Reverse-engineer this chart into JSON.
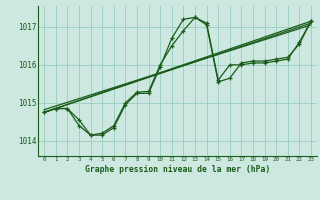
{
  "title": "Graphe pression niveau de la mer (hPa)",
  "background_color": "#cce8e0",
  "grid_color": "#99ccc2",
  "line_color": "#1a5c1a",
  "xlim": [
    -0.5,
    23.5
  ],
  "ylim": [
    1013.6,
    1017.55
  ],
  "yticks": [
    1014,
    1015,
    1016,
    1017
  ],
  "xticks": [
    0,
    1,
    2,
    3,
    4,
    5,
    6,
    7,
    8,
    9,
    10,
    11,
    12,
    13,
    14,
    15,
    16,
    17,
    18,
    19,
    20,
    21,
    22,
    23
  ],
  "curve1_x": [
    0,
    1,
    2,
    3,
    4,
    5,
    6,
    7,
    8,
    9,
    10,
    11,
    12,
    13,
    14,
    15,
    16,
    17,
    18,
    19,
    20,
    21,
    22,
    23
  ],
  "curve1_y": [
    1014.75,
    1014.85,
    1014.85,
    1014.55,
    1014.15,
    1014.15,
    1014.35,
    1014.95,
    1015.25,
    1015.25,
    1015.95,
    1016.7,
    1017.2,
    1017.25,
    1017.05,
    1015.55,
    1015.65,
    1016.05,
    1016.1,
    1016.1,
    1016.15,
    1016.2,
    1016.55,
    1017.15
  ],
  "curve2_x": [
    0,
    1,
    2,
    3,
    4,
    5,
    6,
    7,
    8,
    9,
    10,
    11,
    12,
    13,
    14,
    15,
    16,
    17,
    18,
    19,
    20,
    21,
    22,
    23
  ],
  "curve2_y": [
    1014.75,
    1014.85,
    1014.85,
    1014.4,
    1014.15,
    1014.2,
    1014.4,
    1015.0,
    1015.28,
    1015.3,
    1016.0,
    1016.5,
    1016.9,
    1017.25,
    1017.1,
    1015.6,
    1016.0,
    1016.0,
    1016.05,
    1016.05,
    1016.1,
    1016.15,
    1016.6,
    1017.15
  ],
  "line1_x": [
    0,
    23
  ],
  "line1_y": [
    1014.75,
    1017.15
  ],
  "line2_x": [
    0,
    23
  ],
  "line2_y": [
    1014.75,
    1017.1
  ],
  "line3_x": [
    0,
    23
  ],
  "line3_y": [
    1014.82,
    1017.05
  ]
}
